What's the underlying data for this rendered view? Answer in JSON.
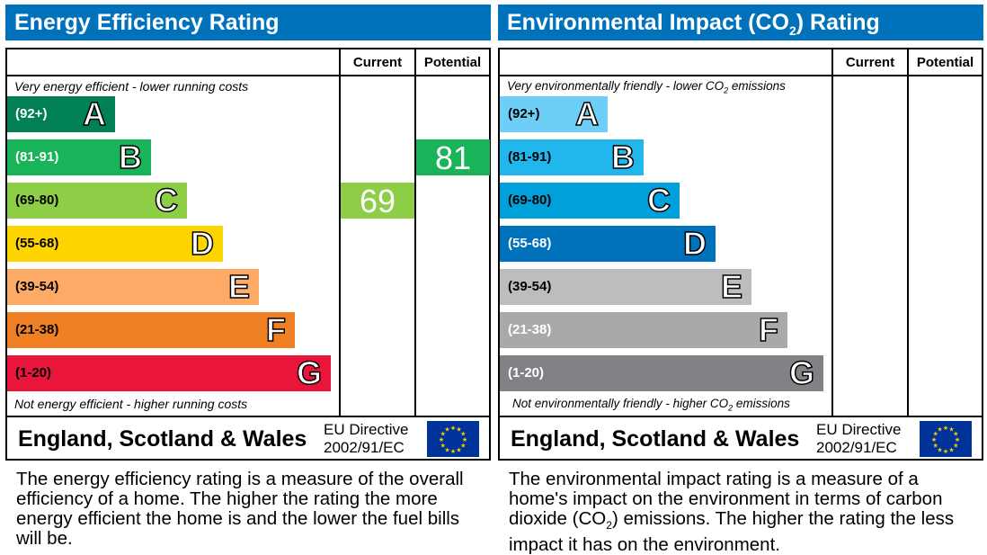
{
  "chart_data": [
    {
      "type": "bar",
      "title": "Energy Efficiency Rating",
      "columns": [
        "Current",
        "Potential"
      ],
      "top_note": "Very energy efficient - lower running costs",
      "bottom_note": "Not energy efficient - higher running costs",
      "bands": [
        {
          "letter": "A",
          "range": "(92+)",
          "color": "#008054",
          "text_color": "#ffffff"
        },
        {
          "letter": "B",
          "range": "(81-91)",
          "color": "#19b459",
          "text_color": "#ffffff"
        },
        {
          "letter": "C",
          "range": "(69-80)",
          "color": "#8dce46",
          "text_color": "#000000"
        },
        {
          "letter": "D",
          "range": "(55-68)",
          "color": "#ffd500",
          "text_color": "#000000"
        },
        {
          "letter": "E",
          "range": "(39-54)",
          "color": "#fcaa65",
          "text_color": "#000000"
        },
        {
          "letter": "F",
          "range": "(21-38)",
          "color": "#ef8023",
          "text_color": "#000000"
        },
        {
          "letter": "G",
          "range": "(1-20)",
          "color": "#e9153b",
          "text_color": "#000000"
        }
      ],
      "current": {
        "value": "69",
        "band": "C"
      },
      "potential": {
        "value": "81",
        "band": "B"
      },
      "region": "England, Scotland & Wales",
      "directive_line1": "EU Directive",
      "directive_line2": "2002/91/EC",
      "description": "The energy efficiency rating is a measure of the overall efficiency of a home. The higher the rating the more energy efficient the home is and the lower the fuel bills will be."
    },
    {
      "type": "bar",
      "title": "Environmental Impact (CO2) Rating",
      "columns": [
        "Current",
        "Potential"
      ],
      "top_note": "Very environmentally friendly - lower CO2 emissions",
      "bottom_note": "Not environmentally friendly - higher CO2 emissions",
      "bands": [
        {
          "letter": "A",
          "range": "(92+)",
          "color": "#6dcff6",
          "text_color": "#000000"
        },
        {
          "letter": "B",
          "range": "(81-91)",
          "color": "#21b6ec",
          "text_color": "#000000"
        },
        {
          "letter": "C",
          "range": "(69-80)",
          "color": "#00a0da",
          "text_color": "#000000"
        },
        {
          "letter": "D",
          "range": "(55-68)",
          "color": "#0072bc",
          "text_color": "#ffffff"
        },
        {
          "letter": "E",
          "range": "(39-54)",
          "color": "#bbbdbf",
          "text_color": "#000000"
        },
        {
          "letter": "F",
          "range": "(21-38)",
          "color": "#a7a9ab",
          "text_color": "#ffffff"
        },
        {
          "letter": "G",
          "range": "(1-20)",
          "color": "#808285",
          "text_color": "#ffffff"
        }
      ],
      "current": null,
      "potential": null,
      "region": "England, Scotland & Wales",
      "directive_line1": "EU Directive",
      "directive_line2": "2002/91/EC",
      "description": "The environmental impact rating is a measure of a home's impact on the environment in terms of carbon dioxide (CO2) emissions. The higher the rating the less impact it has on the environment."
    }
  ]
}
